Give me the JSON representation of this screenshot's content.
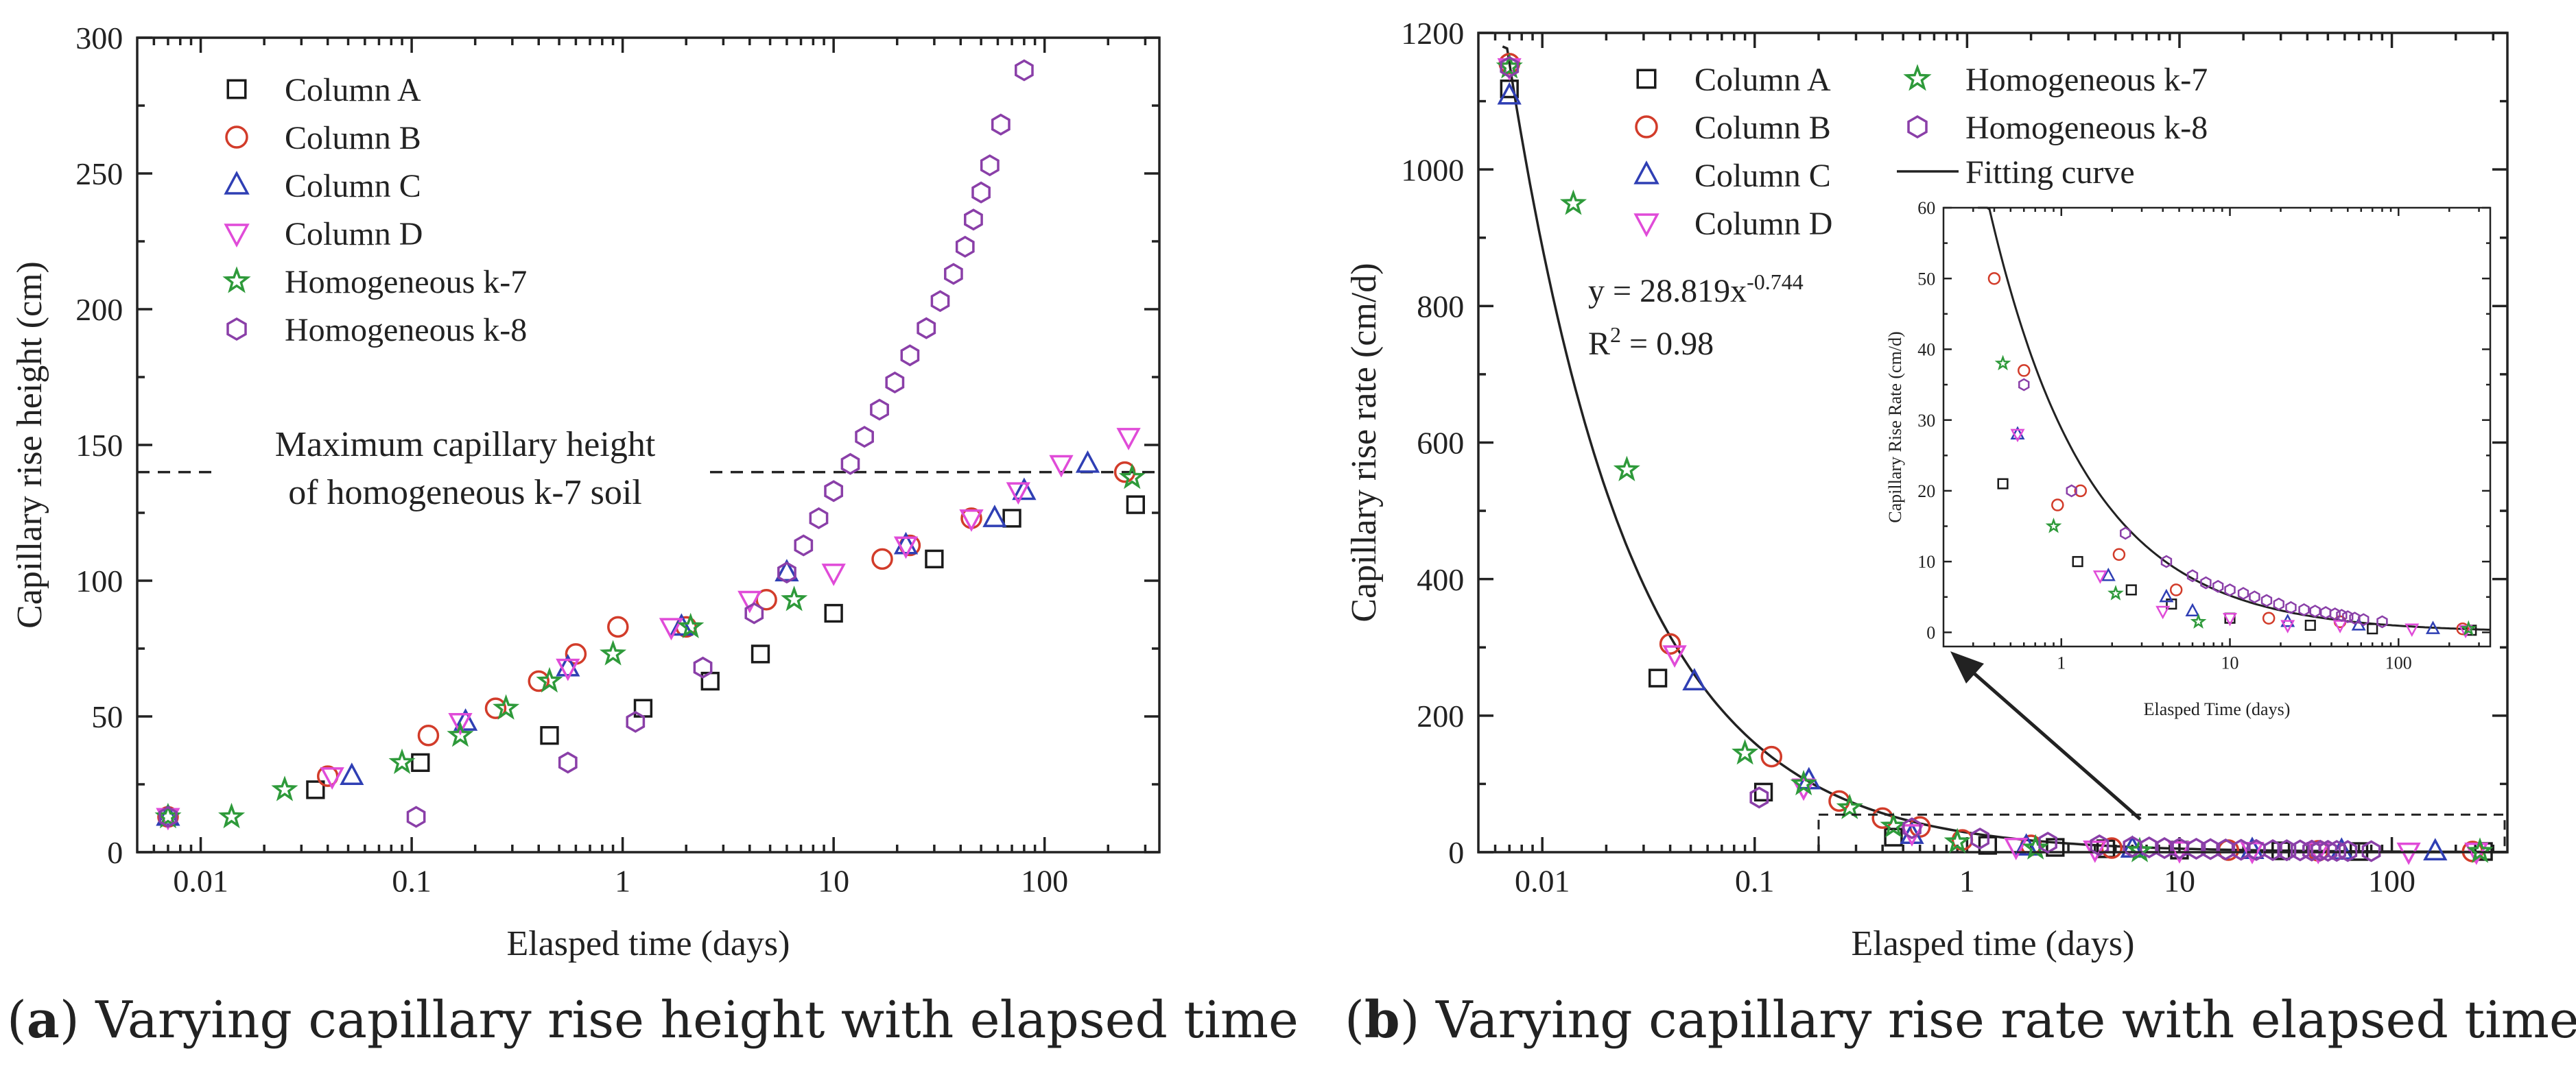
{
  "chart_data": [
    {
      "type": "scatter",
      "panel": "a",
      "xlabel": "Elasped time (days)",
      "ylabel": "Capillary rise height (cm)",
      "xscale": "log",
      "xlim": [
        0.005,
        350
      ],
      "ylim": [
        0,
        300
      ],
      "xticks": [
        0.01,
        0.1,
        1,
        10,
        100
      ],
      "xtick_labels": [
        "0.01",
        "0.1",
        "1",
        "10",
        "100"
      ],
      "yticks": [
        0,
        50,
        100,
        150,
        200,
        250,
        300
      ],
      "ytick_labels": [
        "0",
        "50",
        "100",
        "150",
        "200",
        "250",
        "300"
      ],
      "legend_position": "top-left",
      "reference_line": {
        "y": 140,
        "style": "dashed",
        "label_lines": [
          "Maximum capillary height",
          "of homogeneous k-7 soil"
        ]
      },
      "series": [
        {
          "name": "Column A",
          "marker": "square",
          "color": "#1a1a1a",
          "points": [
            [
              0.035,
              23
            ],
            [
              0.11,
              33
            ],
            [
              0.45,
              43
            ],
            [
              1.25,
              53
            ],
            [
              2.6,
              63
            ],
            [
              4.5,
              73
            ],
            [
              10,
              88
            ],
            [
              30,
              108
            ],
            [
              70,
              123
            ],
            [
              270,
              128
            ]
          ]
        },
        {
          "name": "Column B",
          "marker": "circle",
          "color": "#d23c2a",
          "points": [
            [
              0.007,
              13
            ],
            [
              0.04,
              28
            ],
            [
              0.12,
              43
            ],
            [
              0.25,
              53
            ],
            [
              0.4,
              63
            ],
            [
              0.6,
              73
            ],
            [
              0.95,
              83
            ],
            [
              2,
              83
            ],
            [
              4.8,
              93
            ],
            [
              17,
              108
            ],
            [
              23,
              113
            ],
            [
              45,
              123
            ],
            [
              240,
              140
            ]
          ]
        },
        {
          "name": "Column C",
          "marker": "triangle-up",
          "color": "#2f3fb4",
          "points": [
            [
              0.007,
              13
            ],
            [
              0.052,
              28
            ],
            [
              0.18,
              48
            ],
            [
              0.55,
              68
            ],
            [
              1.9,
              83
            ],
            [
              6,
              103
            ],
            [
              22,
              113
            ],
            [
              58,
              123
            ],
            [
              80,
              133
            ],
            [
              160,
              143
            ]
          ]
        },
        {
          "name": "Column D",
          "marker": "triangle-down",
          "color": "#e04bd8",
          "points": [
            [
              0.007,
              13
            ],
            [
              0.042,
              28
            ],
            [
              0.17,
              48
            ],
            [
              0.55,
              68
            ],
            [
              1.7,
              83
            ],
            [
              4,
              93
            ],
            [
              10,
              103
            ],
            [
              22,
              113
            ],
            [
              45,
              123
            ],
            [
              75,
              133
            ],
            [
              120,
              143
            ],
            [
              250,
              153
            ]
          ]
        },
        {
          "name": "Homogeneous k-7",
          "marker": "star",
          "color": "#2e9a3a",
          "points": [
            [
              0.007,
              13
            ],
            [
              0.014,
              13
            ],
            [
              0.025,
              23
            ],
            [
              0.09,
              33
            ],
            [
              0.17,
              43
            ],
            [
              0.28,
              53
            ],
            [
              0.45,
              63
            ],
            [
              0.9,
              73
            ],
            [
              2.1,
              83
            ],
            [
              6.5,
              93
            ],
            [
              260,
              138
            ]
          ]
        },
        {
          "name": "Homogeneous k-8",
          "marker": "hexagon",
          "color": "#8a3fa8",
          "points": [
            [
              0.007,
              13
            ],
            [
              0.105,
              13
            ],
            [
              0.55,
              33
            ],
            [
              1.15,
              48
            ],
            [
              2.4,
              68
            ],
            [
              4.2,
              88
            ],
            [
              6,
              103
            ],
            [
              7.2,
              113
            ],
            [
              8.5,
              123
            ],
            [
              10,
              133
            ],
            [
              12,
              143
            ],
            [
              14,
              153
            ],
            [
              16.5,
              163
            ],
            [
              19.5,
              173
            ],
            [
              23,
              183
            ],
            [
              27.5,
              193
            ],
            [
              32,
              203
            ],
            [
              37,
              213
            ],
            [
              42,
              223
            ],
            [
              46,
              233
            ],
            [
              50,
              243
            ],
            [
              55,
              253
            ],
            [
              62,
              268
            ],
            [
              80,
              288
            ]
          ]
        }
      ]
    },
    {
      "type": "scatter",
      "panel": "b",
      "xlabel": "Elasped time (days)",
      "ylabel": "Capillary rise rate (cm/d)",
      "xscale": "log",
      "xlim": [
        0.005,
        350
      ],
      "ylim": [
        0,
        1200
      ],
      "xticks": [
        0.01,
        0.1,
        1,
        10,
        100
      ],
      "xtick_labels": [
        "0.01",
        "0.1",
        "1",
        "10",
        "100"
      ],
      "yticks": [
        0,
        200,
        400,
        600,
        800,
        1000,
        1200
      ],
      "ytick_labels": [
        "0",
        "200",
        "400",
        "600",
        "800",
        "1000",
        "1200"
      ],
      "legend_position": "top",
      "fit": {
        "name": "Fitting curve",
        "a": 28.819,
        "b": -0.744,
        "equation_prefix": "y = 28.819x",
        "equation_exponent": "-0.744",
        "r2_label": "R",
        "r2_value": " = 0.98"
      },
      "zoom_box": {
        "x": [
          0.2,
          350
        ],
        "y": [
          0,
          55
        ]
      },
      "series": [
        {
          "name": "Column A",
          "marker": "square",
          "color": "#1a1a1a",
          "points": [
            [
              0.007,
              1118
            ],
            [
              0.035,
              255
            ],
            [
              0.11,
              88
            ],
            [
              0.45,
              22
            ],
            [
              1.25,
              10
            ],
            [
              2.6,
              7
            ],
            [
              4.5,
              5
            ],
            [
              10,
              3
            ],
            [
              30,
              2
            ],
            [
              70,
              1
            ],
            [
              270,
              1
            ]
          ]
        },
        {
          "name": "Column B",
          "marker": "circle",
          "color": "#d23c2a",
          "points": [
            [
              0.007,
              1155
            ],
            [
              0.04,
              305
            ],
            [
              0.12,
              140
            ],
            [
              0.25,
              75
            ],
            [
              0.4,
              50
            ],
            [
              0.6,
              37
            ],
            [
              0.95,
              18
            ],
            [
              2,
              10
            ],
            [
              4.8,
              6
            ],
            [
              17,
              3
            ],
            [
              45,
              2
            ],
            [
              240,
              1
            ]
          ]
        },
        {
          "name": "Column C",
          "marker": "triangle-up",
          "color": "#2f3fb4",
          "points": [
            [
              0.007,
              1108
            ],
            [
              0.052,
              250
            ],
            [
              0.18,
              105
            ],
            [
              0.55,
              25
            ],
            [
              1.9,
              8
            ],
            [
              6,
              5
            ],
            [
              22,
              3
            ],
            [
              58,
              2
            ],
            [
              160,
              1
            ]
          ]
        },
        {
          "name": "Column D",
          "marker": "triangle-down",
          "color": "#e04bd8",
          "points": [
            [
              0.007,
              1150
            ],
            [
              0.042,
              290
            ],
            [
              0.17,
              95
            ],
            [
              0.55,
              28
            ],
            [
              1.7,
              8
            ],
            [
              4,
              4
            ],
            [
              10,
              3
            ],
            [
              22,
              2
            ],
            [
              45,
              2
            ],
            [
              120,
              1
            ],
            [
              250,
              1
            ]
          ]
        },
        {
          "name": "Homogeneous k-7",
          "marker": "star",
          "color": "#2e9a3a",
          "points": [
            [
              0.007,
              1150
            ],
            [
              0.014,
              950
            ],
            [
              0.025,
              560
            ],
            [
              0.09,
              145
            ],
            [
              0.17,
              100
            ],
            [
              0.28,
              65
            ],
            [
              0.45,
              38
            ],
            [
              0.9,
              15
            ],
            [
              2.1,
              6
            ],
            [
              6.5,
              2
            ],
            [
              260,
              1
            ]
          ]
        },
        {
          "name": "Homogeneous k-8",
          "marker": "hexagon",
          "color": "#8a3fa8",
          "points": [
            [
              0.007,
              1150
            ],
            [
              0.105,
              80
            ],
            [
              0.55,
              35
            ],
            [
              1.15,
              20
            ],
            [
              2.4,
              14
            ],
            [
              4.2,
              10
            ],
            [
              6,
              8
            ],
            [
              7.2,
              7
            ],
            [
              8.5,
              6
            ],
            [
              10,
              5.5
            ],
            [
              12,
              5
            ],
            [
              14,
              4.5
            ],
            [
              16.5,
              4
            ],
            [
              19.5,
              3.5
            ],
            [
              23,
              3.2
            ],
            [
              27.5,
              3
            ],
            [
              32,
              2.8
            ],
            [
              37,
              2.6
            ],
            [
              42,
              2.4
            ],
            [
              46,
              2.2
            ],
            [
              50,
              2
            ],
            [
              55,
              1.9
            ],
            [
              62,
              1.7
            ],
            [
              80,
              1.5
            ]
          ]
        }
      ]
    },
    {
      "type": "scatter",
      "panel": "b-inset",
      "xlabel": "Elasped Time (days)",
      "ylabel": "Capillary Rise Rate (cm/d)",
      "xscale": "log",
      "xlim": [
        0.2,
        350
      ],
      "ylim": [
        -2,
        60
      ],
      "xticks": [
        1,
        10,
        100
      ],
      "xtick_labels": [
        "1",
        "10",
        "100"
      ],
      "yticks": [
        0,
        10,
        20,
        30,
        40,
        50,
        60
      ],
      "ytick_labels": [
        "0",
        "10",
        "20",
        "30",
        "40",
        "50",
        "60"
      ],
      "fit": {
        "a": 28.819,
        "b": -0.744
      },
      "series": [
        {
          "name": "Column A",
          "marker": "square",
          "color": "#1a1a1a",
          "points": [
            [
              0.45,
              21
            ],
            [
              1.25,
              10
            ],
            [
              2.6,
              6
            ],
            [
              4.5,
              4
            ],
            [
              10,
              2
            ],
            [
              30,
              1
            ],
            [
              70,
              0.5
            ],
            [
              270,
              0.3
            ]
          ]
        },
        {
          "name": "Column B",
          "marker": "circle",
          "color": "#d23c2a",
          "points": [
            [
              0.4,
              50
            ],
            [
              0.6,
              37
            ],
            [
              0.95,
              18
            ],
            [
              1.3,
              20
            ],
            [
              2.2,
              11
            ],
            [
              4.8,
              6
            ],
            [
              17,
              2
            ],
            [
              45,
              1.5
            ],
            [
              240,
              0.5
            ]
          ]
        },
        {
          "name": "Column C",
          "marker": "triangle-up",
          "color": "#2f3fb4",
          "points": [
            [
              0.55,
              28
            ],
            [
              1.9,
              8
            ],
            [
              4.2,
              5
            ],
            [
              6,
              3
            ],
            [
              22,
              1.5
            ],
            [
              58,
              1
            ],
            [
              160,
              0.5
            ]
          ]
        },
        {
          "name": "Column D",
          "marker": "triangle-down",
          "color": "#e04bd8",
          "points": [
            [
              0.55,
              28
            ],
            [
              1.7,
              8
            ],
            [
              4,
              3
            ],
            [
              10,
              2
            ],
            [
              22,
              1
            ],
            [
              45,
              1
            ],
            [
              120,
              0.5
            ],
            [
              250,
              0.3
            ]
          ]
        },
        {
          "name": "Homogeneous k-7",
          "marker": "star",
          "color": "#2e9a3a",
          "points": [
            [
              0.45,
              38
            ],
            [
              0.9,
              15
            ],
            [
              2.1,
              5.5
            ],
            [
              6.5,
              1.5
            ],
            [
              260,
              0.5
            ]
          ]
        },
        {
          "name": "Homogeneous k-8",
          "marker": "hexagon",
          "color": "#8a3fa8",
          "points": [
            [
              0.6,
              35
            ],
            [
              1.15,
              20
            ],
            [
              2.4,
              14
            ],
            [
              4.2,
              10
            ],
            [
              6,
              8
            ],
            [
              7.2,
              7
            ],
            [
              8.5,
              6.5
            ],
            [
              10,
              6
            ],
            [
              12,
              5.5
            ],
            [
              14,
              5
            ],
            [
              16.5,
              4.5
            ],
            [
              19.5,
              4
            ],
            [
              23,
              3.5
            ],
            [
              27.5,
              3.2
            ],
            [
              32,
              3
            ],
            [
              37,
              2.8
            ],
            [
              42,
              2.6
            ],
            [
              46,
              2.4
            ],
            [
              50,
              2.2
            ],
            [
              55,
              2
            ],
            [
              62,
              1.8
            ],
            [
              80,
              1.5
            ]
          ]
        }
      ]
    }
  ],
  "captions": {
    "a": {
      "letter": "a",
      "text": " Varying capillary rise height with elapsed time"
    },
    "b": {
      "letter": "b",
      "text": " Varying capillary rise rate with elapsed time"
    }
  }
}
